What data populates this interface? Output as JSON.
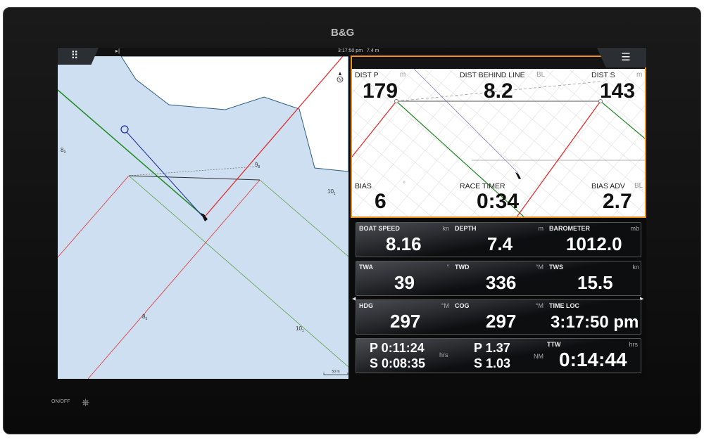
{
  "brand": "B&G",
  "status": {
    "time_depth": "3:17:50 pm   7.4 m"
  },
  "map": {
    "depths": [
      {
        "v": "8",
        "s": "9"
      },
      {
        "v": "9",
        "s": "8"
      },
      {
        "v": "10",
        "s": "1"
      },
      {
        "v": "8",
        "s": "5"
      },
      {
        "v": "10",
        "s": "1"
      }
    ],
    "scale": "50 m",
    "north": "N"
  },
  "race": {
    "dist_p": {
      "label": "DIST P",
      "unit": "m",
      "value": "179"
    },
    "dist_behind": {
      "label": "DIST BEHIND LINE",
      "unit": "BL",
      "value": "8.2"
    },
    "dist_s": {
      "label": "DIST S",
      "unit": "m",
      "value": "143"
    },
    "bias": {
      "label": "BIAS",
      "unit": "°",
      "value": "6"
    },
    "race_timer": {
      "label": "RACE TIMER",
      "value": "0:34"
    },
    "bias_adv": {
      "label": "BIAS ADV",
      "unit": "BL",
      "value": "2.7"
    }
  },
  "panels": [
    [
      {
        "label": "BOAT SPEED",
        "unit": "kn",
        "value": "8.16"
      },
      {
        "label": "DEPTH",
        "unit": "m",
        "value": "7.4"
      },
      {
        "label": "BAROMETER",
        "unit": "mb",
        "value": "1012.0"
      }
    ],
    [
      {
        "label": "TWA",
        "unit": "°",
        "value": "39"
      },
      {
        "label": "TWD",
        "unit": "°M",
        "value": "336"
      },
      {
        "label": "TWS",
        "unit": "kn",
        "value": "15.5"
      }
    ],
    [
      {
        "label": "HDG",
        "unit": "°M",
        "value": "297"
      },
      {
        "label": "COG",
        "unit": "°M",
        "value": "297"
      },
      {
        "label": "TIME LOC",
        "unit": "",
        "value": "3:17:50 pm"
      }
    ]
  ],
  "laylines": {
    "time_p": "P 0:11:24",
    "time_s": "S 0:08:35",
    "time_unit": "hrs",
    "dist_p": "P 1.37",
    "dist_s": "S 1.03",
    "dist_unit": "NM",
    "ttw_label": "TTW",
    "ttw_unit": "hrs",
    "ttw_value": "0:14:44"
  },
  "buttons": {
    "power": "ON/OFF"
  },
  "colors": {
    "accent": "#f0901e",
    "port": "#e82020",
    "starboard": "#1f8a1f",
    "water": "#cddff0"
  }
}
